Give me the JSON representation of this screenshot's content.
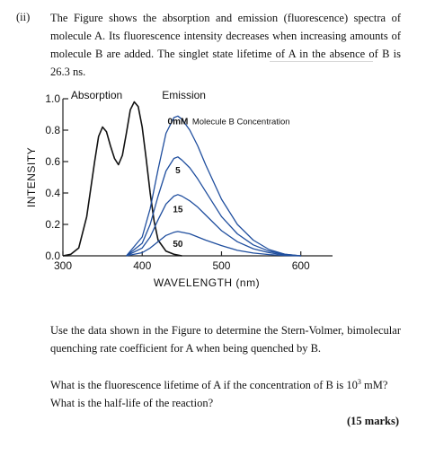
{
  "question": {
    "number": "(ii)",
    "intro": "The Figure shows the absorption and emission (fluorescence) spectra of molecule A. Its fluorescence intensity decreases when increasing amounts of molecule B are added. The singlet state lifetime of A in the absence of B is 26.3 ns.",
    "task": "Use the data shown in the Figure to determine the Stern-Volmer, bimolecular quenching rate coefficient for A when being quenched by B.",
    "q1_text": "What is the fluorescence lifetime of A if the concentration of B is 10",
    "q1_exp": "3",
    "q1_end": " mM?",
    "q2": "What is the half-life of the reaction?",
    "marks": "(15 marks)"
  },
  "chart_data": {
    "type": "line",
    "xlabel": "WAVELENGTH (nm)",
    "ylabel": "INTENSITY",
    "xlim": [
      300,
      640
    ],
    "ylim": [
      0,
      1.0
    ],
    "xticks": [
      300,
      400,
      500,
      600
    ],
    "yticks": [
      "0.0",
      "0.2",
      "0.4",
      "0.6",
      "0.8",
      "1.0"
    ],
    "yticks_values": [
      0,
      0.2,
      0.4,
      0.6,
      0.8,
      1.0
    ],
    "header_labels": [
      "Absorption",
      "Emission"
    ],
    "legend_text": "Molecule B Concentration",
    "series": [
      {
        "name": "Absorption",
        "x": [
          300,
          310,
          320,
          330,
          340,
          345,
          350,
          355,
          360,
          365,
          370,
          375,
          380,
          385,
          390,
          395,
          400,
          405,
          410,
          415,
          420,
          430,
          440,
          450
        ],
        "values": [
          0,
          0.01,
          0.05,
          0.25,
          0.6,
          0.76,
          0.82,
          0.79,
          0.7,
          0.62,
          0.58,
          0.64,
          0.78,
          0.93,
          0.98,
          0.95,
          0.82,
          0.62,
          0.4,
          0.22,
          0.1,
          0.03,
          0.01,
          0
        ]
      },
      {
        "name": "0mM",
        "x": [
          380,
          400,
          410,
          420,
          430,
          440,
          445,
          450,
          460,
          470,
          480,
          500,
          520,
          540,
          560,
          580,
          600
        ],
        "values": [
          0,
          0.12,
          0.3,
          0.55,
          0.78,
          0.88,
          0.89,
          0.87,
          0.8,
          0.7,
          0.58,
          0.36,
          0.2,
          0.1,
          0.04,
          0.01,
          0
        ]
      },
      {
        "name": "5",
        "x": [
          380,
          400,
          410,
          420,
          430,
          440,
          445,
          450,
          460,
          470,
          480,
          500,
          520,
          540,
          560,
          580,
          600
        ],
        "values": [
          0,
          0.08,
          0.2,
          0.38,
          0.54,
          0.62,
          0.63,
          0.61,
          0.56,
          0.49,
          0.41,
          0.25,
          0.14,
          0.07,
          0.03,
          0.01,
          0
        ]
      },
      {
        "name": "15",
        "x": [
          380,
          400,
          410,
          420,
          430,
          440,
          445,
          450,
          460,
          470,
          480,
          500,
          520,
          540,
          560,
          580,
          600
        ],
        "values": [
          0,
          0.05,
          0.12,
          0.23,
          0.33,
          0.38,
          0.39,
          0.38,
          0.35,
          0.31,
          0.26,
          0.16,
          0.09,
          0.045,
          0.02,
          0.005,
          0
        ]
      },
      {
        "name": "50",
        "x": [
          380,
          400,
          410,
          420,
          430,
          440,
          445,
          450,
          460,
          470,
          480,
          500,
          520,
          540,
          560,
          580,
          600
        ],
        "values": [
          0,
          0.02,
          0.05,
          0.09,
          0.13,
          0.15,
          0.155,
          0.15,
          0.14,
          0.12,
          0.1,
          0.065,
          0.035,
          0.018,
          0.008,
          0.002,
          0
        ]
      }
    ],
    "series_labels": [
      "0mM",
      "5",
      "15",
      "50"
    ],
    "series_label_at": [
      [
        445,
        0.86
      ],
      [
        445,
        0.55
      ],
      [
        445,
        0.3
      ],
      [
        445,
        0.08
      ]
    ],
    "colors": {
      "absorption": "#111111",
      "emission": "#1f4e9e",
      "axis": "#222222"
    },
    "grid": false
  }
}
